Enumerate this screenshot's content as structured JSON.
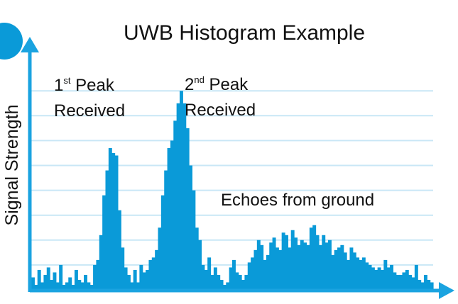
{
  "colors": {
    "bars": "#0a9ad8",
    "axis": "#1aa3e0",
    "grid": "#c9e7f6",
    "text": "#111111"
  },
  "chart_data": {
    "type": "bar",
    "title": "UWB Histogram Example",
    "xlabel": "",
    "ylabel": "Signal Strength",
    "ylim": [
      0,
      100
    ],
    "grid": true,
    "gridlines": [
      10,
      20,
      30,
      40,
      50,
      60,
      70,
      80
    ],
    "annotations": [
      {
        "id": "peak1",
        "line1_sup": "1",
        "line1_supscript": "st",
        "line1_rest": " Peak",
        "line2": "Received"
      },
      {
        "id": "peak2",
        "line1_sup": "2",
        "line1_supscript": "nd",
        "line1_rest": " Peak",
        "line2": "Received"
      },
      {
        "id": "echoes",
        "text": "Echoes from ground"
      }
    ],
    "values": [
      5,
      2,
      8,
      3,
      6,
      9,
      4,
      7,
      3,
      10,
      2,
      3,
      5,
      2,
      8,
      4,
      3,
      6,
      3,
      2,
      10,
      12,
      22,
      38,
      48,
      57,
      55,
      54,
      32,
      17,
      9,
      6,
      3,
      8,
      3,
      10,
      7,
      8,
      12,
      13,
      16,
      25,
      38,
      48,
      57,
      60,
      68,
      75,
      80,
      75,
      65,
      50,
      40,
      25,
      20,
      10,
      8,
      13,
      6,
      9,
      6,
      4,
      2,
      3,
      9,
      12,
      7,
      6,
      4,
      6,
      11,
      13,
      16,
      20,
      18,
      12,
      14,
      19,
      21,
      17,
      16,
      23,
      22,
      17,
      24,
      21,
      18,
      20,
      19,
      18,
      25,
      26,
      22,
      18,
      22,
      19,
      20,
      14,
      16,
      17,
      18,
      15,
      12,
      17,
      15,
      13,
      12,
      13,
      11,
      10,
      9,
      8,
      9,
      8,
      12,
      9,
      10,
      7,
      6,
      6,
      7,
      8,
      6,
      5,
      10,
      4,
      3,
      6,
      4,
      3
    ]
  }
}
